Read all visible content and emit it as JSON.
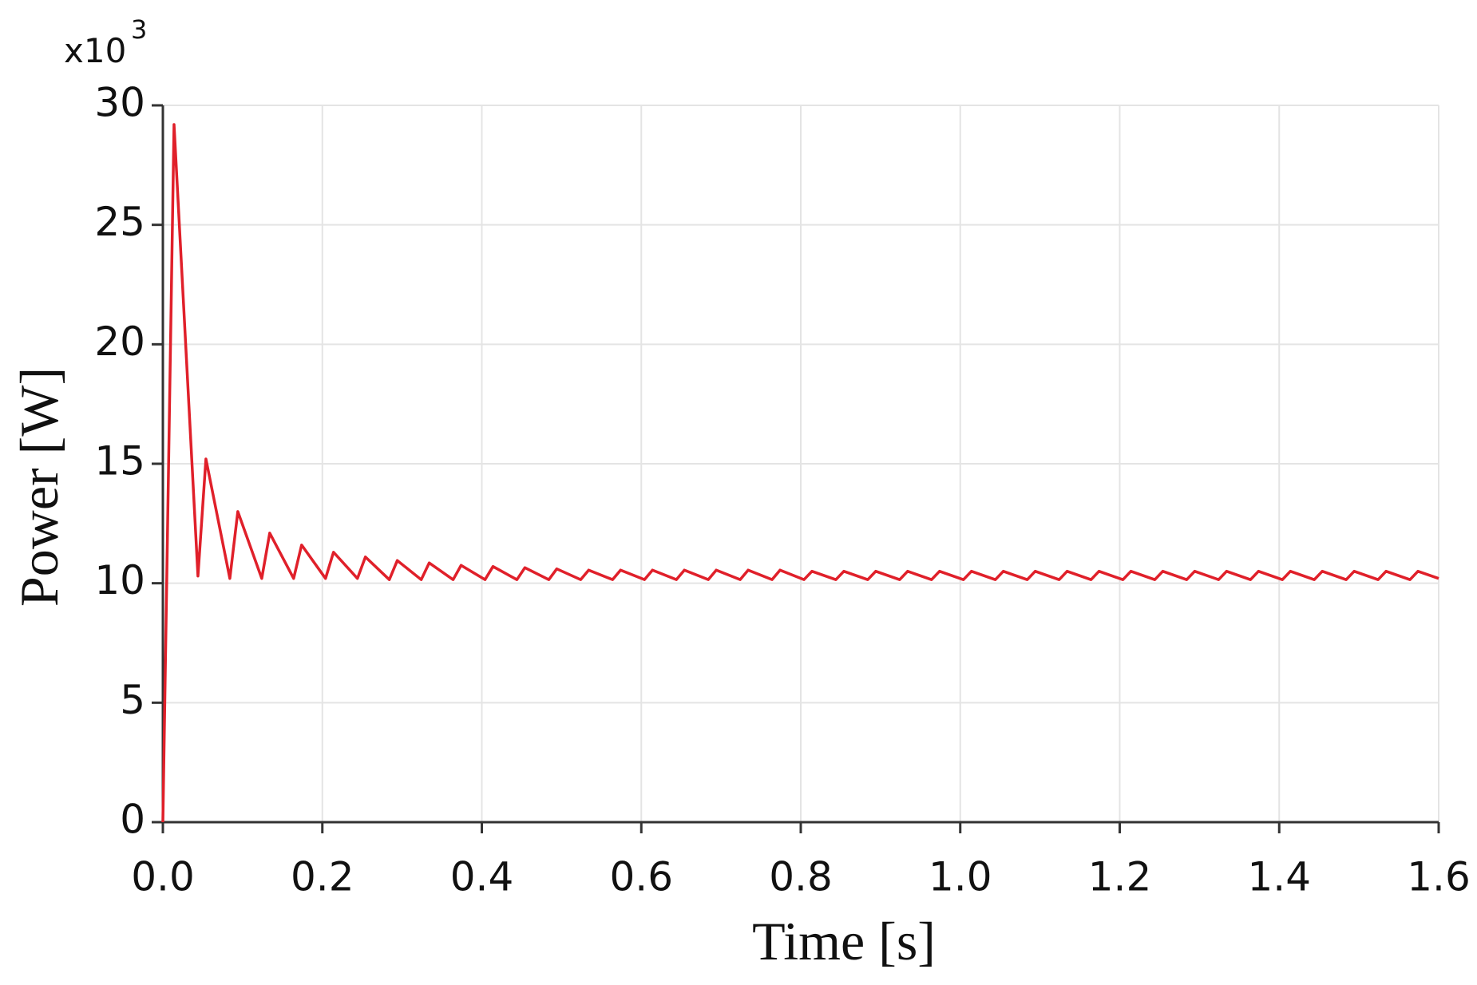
{
  "chart_data": {
    "type": "line",
    "x_label": "Time [s]",
    "y_label": "Power [W]",
    "y_multiplier": {
      "base": "x10",
      "exponent": "3"
    },
    "xlim": [
      0,
      1.6
    ],
    "xticks": [
      {
        "value": 0,
        "label": "0.0"
      },
      0.2,
      0.4,
      0.6,
      0.8,
      {
        "value": 1,
        "label": "1.0"
      },
      1.2,
      1.4,
      1.6
    ],
    "ylim": [
      0,
      30
    ],
    "yticks": [
      0,
      5,
      10,
      15,
      20,
      25,
      30
    ],
    "grid": true,
    "x": [
      0,
      0.014,
      0.044,
      0.054,
      0.084,
      0.094,
      0.124,
      0.134,
      0.164,
      0.174,
      0.204,
      0.214,
      0.244,
      0.254,
      0.284,
      0.294,
      0.324,
      0.334,
      0.364,
      0.374,
      0.404,
      0.414,
      0.444,
      0.454,
      0.484,
      0.494,
      0.524,
      0.534,
      0.564,
      0.574,
      0.604,
      0.614,
      0.644,
      0.654,
      0.684,
      0.694,
      0.724,
      0.734,
      0.764,
      0.774,
      0.804,
      0.814,
      0.844,
      0.854,
      0.884,
      0.894,
      0.924,
      0.934,
      0.964,
      0.974,
      1.004,
      1.014,
      1.044,
      1.054,
      1.084,
      1.094,
      1.124,
      1.134,
      1.164,
      1.174,
      1.204,
      1.214,
      1.244,
      1.254,
      1.284,
      1.294,
      1.324,
      1.334,
      1.364,
      1.374,
      1.404,
      1.414,
      1.444,
      1.454,
      1.484,
      1.494,
      1.524,
      1.534,
      1.564,
      1.574,
      1.6
    ],
    "series": [
      {
        "color": "#e0202a",
        "values": [
          0,
          29.2,
          10.3,
          15.2,
          10.2,
          13.0,
          10.2,
          12.1,
          10.2,
          11.6,
          10.2,
          11.3,
          10.2,
          11.1,
          10.15,
          10.95,
          10.15,
          10.85,
          10.15,
          10.75,
          10.15,
          10.7,
          10.15,
          10.65,
          10.15,
          10.6,
          10.15,
          10.55,
          10.15,
          10.55,
          10.15,
          10.55,
          10.15,
          10.55,
          10.15,
          10.55,
          10.15,
          10.55,
          10.15,
          10.55,
          10.15,
          10.5,
          10.15,
          10.5,
          10.15,
          10.5,
          10.15,
          10.5,
          10.15,
          10.5,
          10.15,
          10.5,
          10.15,
          10.5,
          10.15,
          10.5,
          10.15,
          10.5,
          10.15,
          10.5,
          10.15,
          10.5,
          10.15,
          10.5,
          10.15,
          10.5,
          10.15,
          10.5,
          10.15,
          10.5,
          10.15,
          10.5,
          10.15,
          10.5,
          10.15,
          10.5,
          10.15,
          10.5,
          10.15,
          10.5,
          10.2
        ]
      }
    ]
  }
}
